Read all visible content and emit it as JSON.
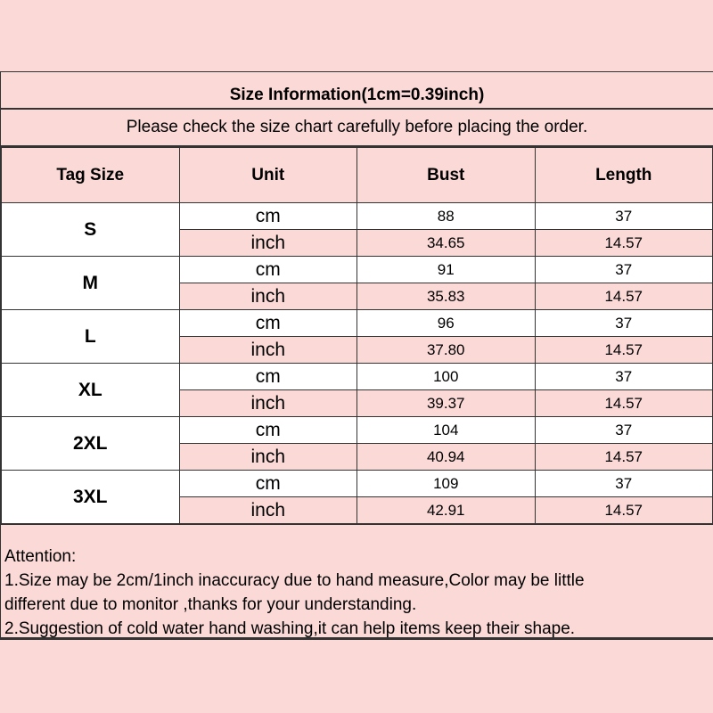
{
  "title": "Size Information(1cm=0.39inch)",
  "subtitle": "Please check the size chart carefully before placing the order.",
  "headers": [
    "Tag Size",
    "Unit",
    "Bust",
    "Length"
  ],
  "rows": [
    {
      "size": "S",
      "cm": {
        "unit": "cm",
        "bust": "88",
        "length": "37"
      },
      "inch": {
        "unit": "inch",
        "bust": "34.65",
        "length": "14.57"
      }
    },
    {
      "size": "M",
      "cm": {
        "unit": "cm",
        "bust": "91",
        "length": "37"
      },
      "inch": {
        "unit": "inch",
        "bust": "35.83",
        "length": "14.57"
      }
    },
    {
      "size": "L",
      "cm": {
        "unit": "cm",
        "bust": "96",
        "length": "37"
      },
      "inch": {
        "unit": "inch",
        "bust": "37.80",
        "length": "14.57"
      }
    },
    {
      "size": "XL",
      "cm": {
        "unit": "cm",
        "bust": "100",
        "length": "37"
      },
      "inch": {
        "unit": "inch",
        "bust": "39.37",
        "length": "14.57"
      }
    },
    {
      "size": "2XL",
      "cm": {
        "unit": "cm",
        "bust": "104",
        "length": "37"
      },
      "inch": {
        "unit": "inch",
        "bust": "40.94",
        "length": "14.57"
      }
    },
    {
      "size": "3XL",
      "cm": {
        "unit": "cm",
        "bust": "109",
        "length": "37"
      },
      "inch": {
        "unit": "inch",
        "bust": "42.91",
        "length": "14.57"
      }
    }
  ],
  "attention": [
    "Attention:",
    "1.Size may be 2cm/1inch inaccuracy due to hand measure,Color may be little",
    "different due to monitor ,thanks for your understanding.",
    "2.Suggestion of cold water hand washing,it can help items keep their shape."
  ]
}
